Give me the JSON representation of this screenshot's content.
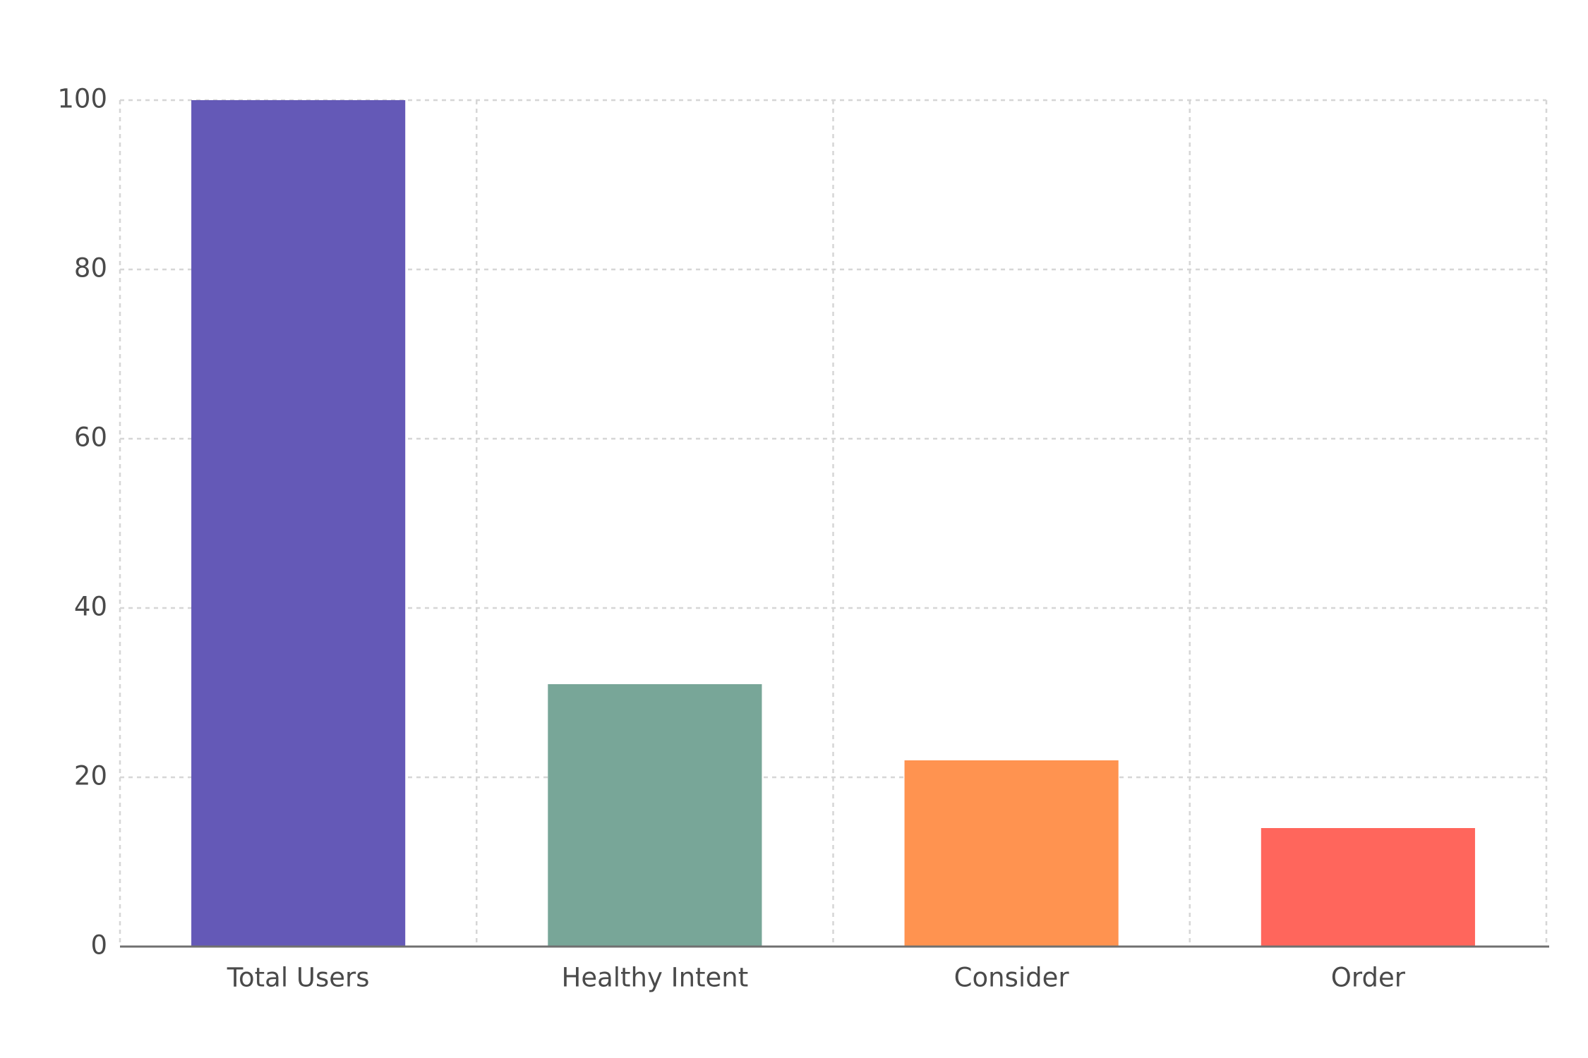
{
  "chart_data": {
    "type": "bar",
    "categories": [
      "Total Users",
      "Healthy Intent",
      "Consider",
      "Order"
    ],
    "values": [
      100,
      31,
      22,
      14
    ],
    "colors": [
      "#6459b7",
      "#78a698",
      "#ff9350",
      "#ff665c"
    ],
    "ylim": [
      0,
      100
    ],
    "yticks": [
      0,
      20,
      40,
      60,
      80,
      100
    ],
    "grid": true
  }
}
